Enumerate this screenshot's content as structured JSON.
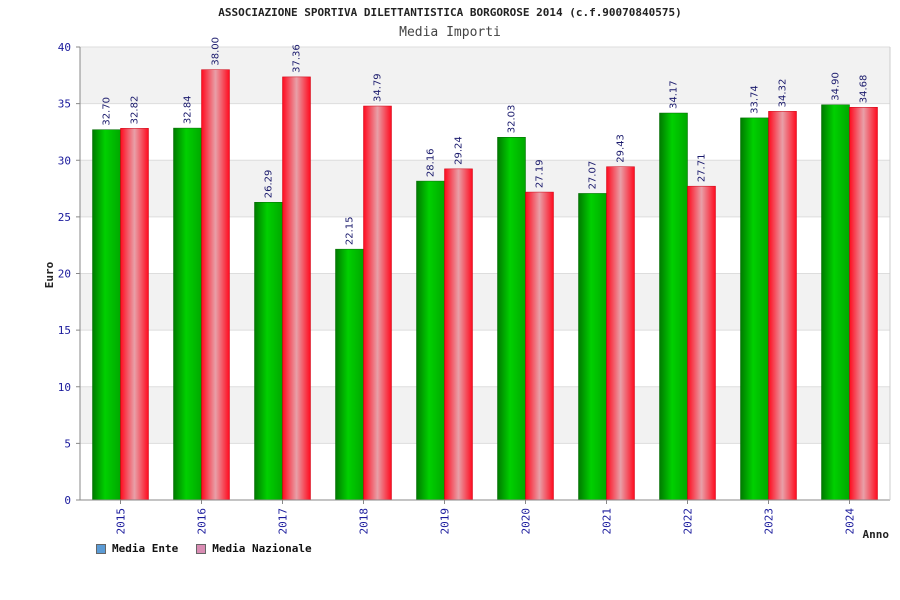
{
  "chart_data": {
    "type": "bar",
    "title": "ASSOCIAZIONE SPORTIVA DILETTANTISTICA BORGOROSE 2014 (c.f.90070840575)",
    "subtitle": "Media Importi",
    "xlabel": "Anno",
    "ylabel": "Euro",
    "ylim": [
      0,
      40
    ],
    "yticks": [
      0,
      5,
      10,
      15,
      20,
      25,
      30,
      35,
      40
    ],
    "categories": [
      "2015",
      "2016",
      "2017",
      "2018",
      "2019",
      "2020",
      "2021",
      "2022",
      "2023",
      "2024"
    ],
    "series": [
      {
        "name": "Media Ente",
        "color": "#00b400",
        "swatch_color": "#5b9bd5",
        "values": [
          32.7,
          32.84,
          26.29,
          22.15,
          28.16,
          32.03,
          27.07,
          34.17,
          33.74,
          34.9
        ],
        "labels": [
          "32.70",
          "32.84",
          "26.29",
          "22.15",
          "28.16",
          "32.03",
          "27.07",
          "34.17",
          "33.74",
          "34.90"
        ]
      },
      {
        "name": "Media Nazionale",
        "color": "#ee1122",
        "swatch_color": "#d98cb3",
        "values": [
          32.82,
          38.0,
          37.36,
          34.79,
          29.24,
          27.19,
          29.43,
          27.71,
          34.32,
          34.68
        ],
        "labels": [
          "32.82",
          "38.00",
          "37.36",
          "34.79",
          "29.24",
          "27.19",
          "29.43",
          "27.71",
          "34.32",
          "34.68"
        ]
      }
    ],
    "grid": true,
    "legend_position": "bottom-left"
  }
}
